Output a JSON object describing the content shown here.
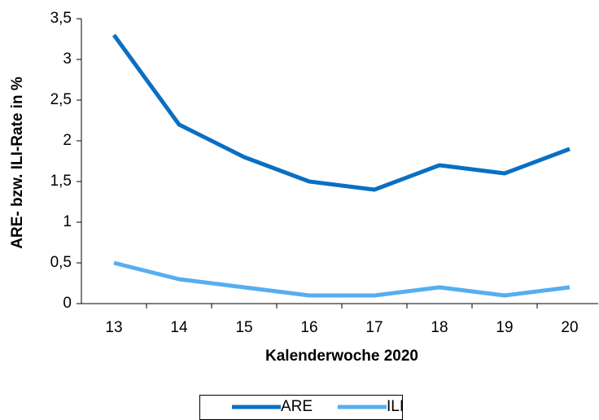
{
  "chart_data": {
    "type": "line",
    "x_label": "Kalenderwoche 2020",
    "y_label": "ARE- bzw. ILI-Rate in %",
    "categories": [
      "13",
      "14",
      "15",
      "16",
      "17",
      "18",
      "19",
      "20"
    ],
    "series": [
      {
        "name": "ARE",
        "color": "#0a6fc2",
        "values": [
          3.3,
          2.2,
          1.8,
          1.5,
          1.4,
          1.7,
          1.6,
          1.9
        ]
      },
      {
        "name": "ILI",
        "color": "#56aef0",
        "values": [
          0.5,
          0.3,
          0.2,
          0.1,
          0.1,
          0.2,
          0.1,
          0.2
        ]
      }
    ],
    "ylim": [
      0,
      3.5
    ],
    "yticks": [
      0,
      {
        "value": 0.5,
        "label": "0,5"
      },
      1,
      {
        "value": 1.5,
        "label": "1,5"
      },
      2,
      {
        "value": 2.5,
        "label": "2,5"
      },
      3,
      {
        "value": 3.5,
        "label": "3,5"
      }
    ],
    "grid": false,
    "legend": "bottom"
  }
}
